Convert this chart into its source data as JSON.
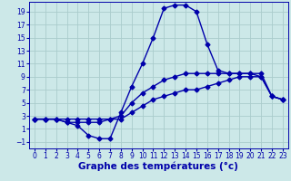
{
  "xlabel": "Graphe des températures (°c)",
  "bg_color": "#cce8e8",
  "grid_color": "#aacccc",
  "line_color": "#0000aa",
  "xlim": [
    -0.5,
    23.5
  ],
  "ylim": [
    -2,
    20.5
  ],
  "xticks": [
    0,
    1,
    2,
    3,
    4,
    5,
    6,
    7,
    8,
    9,
    10,
    11,
    12,
    13,
    14,
    15,
    16,
    17,
    18,
    19,
    20,
    21,
    22,
    23
  ],
  "yticks": [
    -1,
    1,
    3,
    5,
    7,
    9,
    11,
    13,
    15,
    17,
    19
  ],
  "line1_x": [
    0,
    1,
    2,
    3,
    4,
    5,
    6,
    7,
    8,
    9,
    10,
    11,
    12,
    13,
    14,
    15,
    16,
    17,
    18,
    19,
    20,
    21,
    22,
    23
  ],
  "line1_y": [
    2.5,
    2.5,
    2.5,
    2.5,
    2.5,
    2.5,
    2.5,
    2.5,
    2.5,
    3.5,
    4.5,
    5.5,
    6.0,
    6.5,
    7.0,
    7.0,
    7.5,
    8.0,
    8.5,
    9.0,
    9.0,
    9.0,
    6.0,
    5.5
  ],
  "line2_x": [
    0,
    1,
    2,
    3,
    4,
    5,
    6,
    7,
    8,
    9,
    10,
    11,
    12,
    13,
    14,
    15,
    16,
    17,
    18,
    19,
    20,
    21,
    22,
    23
  ],
  "line2_y": [
    2.5,
    2.5,
    2.5,
    2.0,
    2.0,
    2.0,
    2.0,
    2.5,
    3.0,
    5.0,
    6.5,
    7.5,
    8.5,
    9.0,
    9.5,
    9.5,
    9.5,
    9.5,
    9.5,
    9.5,
    9.5,
    9.0,
    6.0,
    5.5
  ],
  "line3_x": [
    0,
    1,
    2,
    3,
    4,
    5,
    6,
    7,
    8,
    9,
    10,
    11,
    12,
    13,
    14,
    15,
    16,
    17,
    18,
    19,
    20,
    21,
    22,
    23
  ],
  "line3_y": [
    2.5,
    2.5,
    2.5,
    2.0,
    1.5,
    0.0,
    -0.5,
    -0.5,
    3.5,
    7.5,
    11.0,
    15.0,
    19.5,
    20.0,
    20.0,
    19.0,
    14.0,
    10.0,
    9.5,
    9.5,
    9.5,
    9.5,
    6.0,
    5.5
  ],
  "marker": "D",
  "markersize": 2.5,
  "linewidth": 1.0,
  "tick_fontsize": 5.5,
  "xlabel_fontsize": 7.5
}
